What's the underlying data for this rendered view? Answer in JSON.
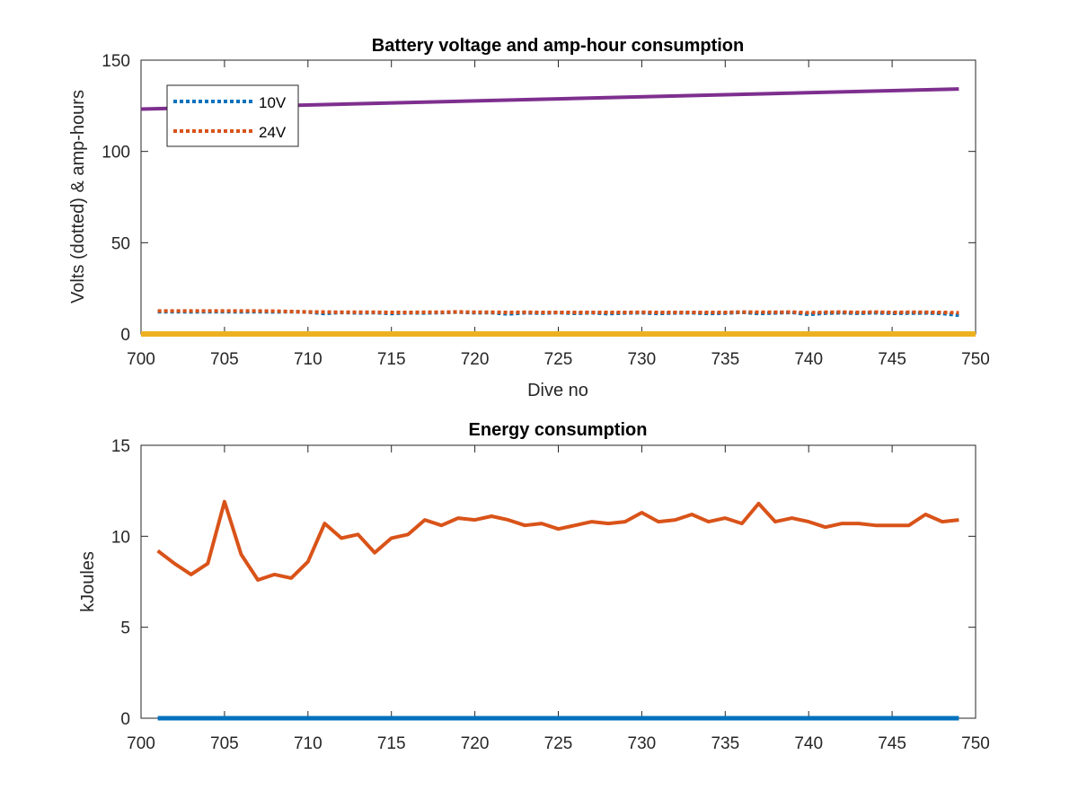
{
  "chart_data": [
    {
      "type": "line",
      "title": "Battery voltage and amp-hour consumption",
      "xlabel": "Dive no",
      "ylabel": "Volts (dotted) & amp-hours",
      "xlim": [
        700,
        750
      ],
      "ylim": [
        0,
        150
      ],
      "xticks": [
        700,
        705,
        710,
        715,
        720,
        725,
        730,
        735,
        740,
        745,
        750
      ],
      "yticks": [
        0,
        50,
        100,
        150
      ],
      "grid": false,
      "legend_position": "top-left",
      "series": [
        {
          "name": "10V",
          "style": "dotted",
          "color": "#0072BD",
          "x": [
            701,
            702,
            703,
            704,
            705,
            706,
            707,
            708,
            709,
            710,
            711,
            712,
            713,
            714,
            715,
            716,
            717,
            718,
            719,
            720,
            721,
            722,
            723,
            724,
            725,
            726,
            727,
            728,
            729,
            730,
            731,
            732,
            733,
            734,
            735,
            736,
            737,
            738,
            739,
            740,
            741,
            742,
            743,
            744,
            745,
            746,
            747,
            748,
            749
          ],
          "values": [
            12.2,
            12.2,
            12.1,
            12.2,
            12.2,
            12.1,
            12.2,
            12.1,
            12.2,
            12.0,
            11.2,
            11.8,
            11.5,
            11.7,
            11.2,
            11.6,
            11.5,
            11.7,
            12.0,
            11.6,
            11.7,
            10.9,
            11.6,
            11.4,
            11.7,
            11.3,
            11.6,
            11.1,
            11.5,
            11.6,
            11.2,
            11.5,
            11.6,
            11.2,
            11.4,
            11.9,
            11.2,
            11.5,
            11.8,
            10.7,
            11.4,
            11.6,
            11.3,
            11.6,
            11.3,
            11.4,
            11.5,
            11.2,
            10.3
          ]
        },
        {
          "name": "24V",
          "style": "dotted",
          "color": "#D95319",
          "x": [
            701,
            702,
            703,
            704,
            705,
            706,
            707,
            708,
            709,
            710,
            711,
            712,
            713,
            714,
            715,
            716,
            717,
            718,
            719,
            720,
            721,
            722,
            723,
            724,
            725,
            726,
            727,
            728,
            729,
            730,
            731,
            732,
            733,
            734,
            735,
            736,
            737,
            738,
            739,
            740,
            741,
            742,
            743,
            744,
            745,
            746,
            747,
            748,
            749
          ],
          "values": [
            12.6,
            12.6,
            12.6,
            12.6,
            12.6,
            12.6,
            12.6,
            12.5,
            12.3,
            12.1,
            12.0,
            11.9,
            11.9,
            11.9,
            11.8,
            11.8,
            11.9,
            11.9,
            12.1,
            11.9,
            11.9,
            11.8,
            11.9,
            11.8,
            11.8,
            11.8,
            11.8,
            11.8,
            11.8,
            11.9,
            11.8,
            11.8,
            11.8,
            11.8,
            11.8,
            12.0,
            11.9,
            11.9,
            12.0,
            11.6,
            11.9,
            12.0,
            11.8,
            12.0,
            11.8,
            11.9,
            11.9,
            11.8,
            11.6
          ]
        },
        {
          "name": "",
          "style": "solid",
          "color": "#EDB120",
          "x": [
            700,
            750
          ],
          "values": [
            0,
            0
          ]
        },
        {
          "name": "",
          "style": "solid",
          "color": "#7E2F8E",
          "x": [
            700,
            749
          ],
          "values": [
            123.2,
            134.2
          ]
        }
      ]
    },
    {
      "type": "line",
      "title": "Energy consumption",
      "xlabel": "",
      "ylabel": "kJoules",
      "xlim": [
        700,
        750
      ],
      "ylim": [
        0,
        15
      ],
      "xticks": [
        700,
        705,
        710,
        715,
        720,
        725,
        730,
        735,
        740,
        745,
        750
      ],
      "yticks": [
        0,
        5,
        10,
        15
      ],
      "grid": false,
      "series": [
        {
          "name": "",
          "style": "solid",
          "color": "#0072BD",
          "x": [
            701,
            749
          ],
          "values": [
            0,
            0
          ]
        },
        {
          "name": "",
          "style": "solid",
          "color": "#D95319",
          "x": [
            701,
            702,
            703,
            704,
            705,
            706,
            707,
            708,
            709,
            710,
            711,
            712,
            713,
            714,
            715,
            716,
            717,
            718,
            719,
            720,
            721,
            722,
            723,
            724,
            725,
            726,
            727,
            728,
            729,
            730,
            731,
            732,
            733,
            734,
            735,
            736,
            737,
            738,
            739,
            740,
            741,
            742,
            743,
            744,
            745,
            746,
            747,
            748,
            749
          ],
          "values": [
            9.2,
            8.5,
            7.9,
            8.5,
            11.9,
            9.0,
            7.6,
            7.9,
            7.7,
            8.6,
            10.7,
            9.9,
            10.1,
            9.1,
            9.9,
            10.1,
            10.9,
            10.6,
            11.0,
            10.9,
            11.1,
            10.9,
            10.6,
            10.7,
            10.4,
            10.6,
            10.8,
            10.7,
            10.8,
            11.3,
            10.8,
            10.9,
            11.2,
            10.8,
            11.0,
            10.7,
            11.8,
            10.8,
            11.0,
            10.8,
            10.5,
            10.7,
            10.7,
            10.6,
            10.6,
            10.6,
            11.2,
            10.8,
            10.9
          ]
        }
      ]
    }
  ]
}
